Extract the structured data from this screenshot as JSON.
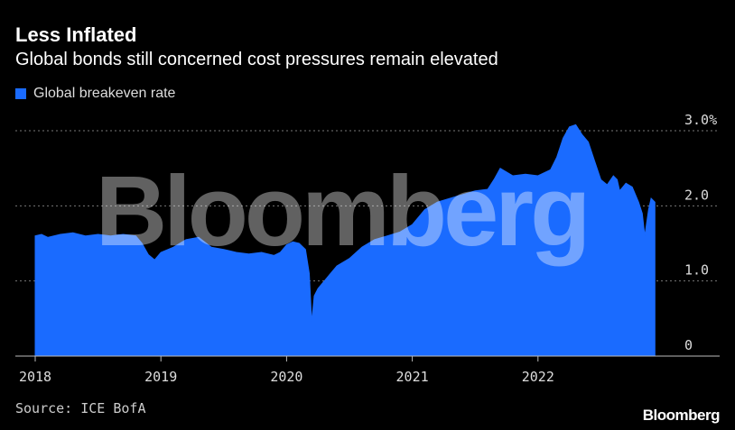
{
  "header": {
    "title": "Less Inflated",
    "subtitle": "Global bonds still concerned cost pressures remain elevated"
  },
  "legend": {
    "label": "Global breakeven rate"
  },
  "footer": {
    "source": "Source: ICE BofA",
    "brand": "Bloomberg"
  },
  "watermark": "Bloomberg",
  "colors": {
    "series": "#1a6bff",
    "background": "#000000",
    "grid": "#777777"
  },
  "chart_data": {
    "type": "area",
    "title": "Less Inflated",
    "subtitle": "Global bonds still concerned cost pressures remain elevated",
    "xlabel": "",
    "ylabel": "",
    "xlim": [
      2018.0,
      2023.0
    ],
    "ylim": [
      0,
      3.0
    ],
    "y_ticks": [
      {
        "value": 3.0,
        "label": "3.0%"
      },
      {
        "value": 2.0,
        "label": "2.0"
      },
      {
        "value": 1.0,
        "label": "1.0"
      },
      {
        "value": 0,
        "label": "0"
      }
    ],
    "x_ticks": [
      {
        "value": 2018.0,
        "label": "2018"
      },
      {
        "value": 2019.0,
        "label": "2019"
      },
      {
        "value": 2020.0,
        "label": "2020"
      },
      {
        "value": 2021.0,
        "label": "2021"
      },
      {
        "value": 2022.0,
        "label": "2022"
      }
    ],
    "grid": true,
    "legend_position": "top-left",
    "series": [
      {
        "name": "Global breakeven rate",
        "x": [
          2018.0,
          2018.05,
          2018.1,
          2018.2,
          2018.3,
          2018.4,
          2018.5,
          2018.6,
          2018.7,
          2018.8,
          2018.85,
          2018.9,
          2018.95,
          2019.0,
          2019.1,
          2019.2,
          2019.3,
          2019.4,
          2019.5,
          2019.6,
          2019.7,
          2019.8,
          2019.9,
          2019.95,
          2020.0,
          2020.05,
          2020.1,
          2020.15,
          2020.18,
          2020.2,
          2020.22,
          2020.25,
          2020.3,
          2020.35,
          2020.4,
          2020.5,
          2020.6,
          2020.7,
          2020.8,
          2020.9,
          2021.0,
          2021.1,
          2021.2,
          2021.3,
          2021.4,
          2021.5,
          2021.6,
          2021.65,
          2021.7,
          2021.8,
          2021.9,
          2022.0,
          2022.1,
          2022.15,
          2022.2,
          2022.25,
          2022.3,
          2022.35,
          2022.4,
          2022.45,
          2022.5,
          2022.55,
          2022.6,
          2022.63,
          2022.65,
          2022.7,
          2022.75,
          2022.8,
          2022.83,
          2022.85,
          2022.88,
          2022.9,
          2022.93
        ],
        "values": [
          1.6,
          1.62,
          1.58,
          1.62,
          1.64,
          1.6,
          1.62,
          1.6,
          1.62,
          1.6,
          1.5,
          1.35,
          1.28,
          1.38,
          1.45,
          1.55,
          1.58,
          1.45,
          1.42,
          1.38,
          1.36,
          1.38,
          1.34,
          1.38,
          1.48,
          1.52,
          1.5,
          1.42,
          1.1,
          0.45,
          0.8,
          0.9,
          1.0,
          1.1,
          1.2,
          1.3,
          1.45,
          1.55,
          1.6,
          1.65,
          1.75,
          1.95,
          2.05,
          2.1,
          2.15,
          2.2,
          2.22,
          2.35,
          2.5,
          2.4,
          2.42,
          2.4,
          2.48,
          2.65,
          2.9,
          3.05,
          3.08,
          2.95,
          2.85,
          2.6,
          2.35,
          2.28,
          2.4,
          2.35,
          2.2,
          2.3,
          2.25,
          2.05,
          1.9,
          1.6,
          1.95,
          2.1,
          2.05
        ]
      }
    ]
  }
}
